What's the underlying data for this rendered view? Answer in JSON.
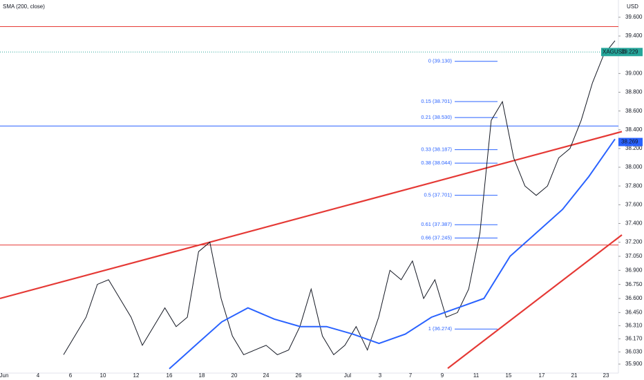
{
  "chart_data": {
    "type": "line",
    "indicator": "SMA (200, close)",
    "currency": "USD",
    "symbol": "XAGUSD",
    "ylim": [
      35.804,
      39.784
    ],
    "yticks": [
      {
        "value": 39.6,
        "label": "39.600"
      },
      {
        "value": 39.4,
        "label": "39.400"
      },
      {
        "value": 39.0,
        "label": "39.000"
      },
      {
        "value": 38.8,
        "label": "38.800"
      },
      {
        "value": 38.6,
        "label": "38.600"
      },
      {
        "value": 38.4,
        "label": "38.400"
      },
      {
        "value": 38.2,
        "label": "38.200"
      },
      {
        "value": 38.0,
        "label": "38.000"
      },
      {
        "value": 37.8,
        "label": "37.800"
      },
      {
        "value": 37.6,
        "label": "37.600"
      },
      {
        "value": 37.4,
        "label": "37.400"
      },
      {
        "value": 37.2,
        "label": "37.200"
      },
      {
        "value": 37.05,
        "label": "37.050"
      },
      {
        "value": 36.9,
        "label": "36.900"
      },
      {
        "value": 36.75,
        "label": "36.750"
      },
      {
        "value": 36.6,
        "label": "36.600"
      },
      {
        "value": 36.45,
        "label": "36.450"
      },
      {
        "value": 36.31,
        "label": "36.310"
      },
      {
        "value": 36.17,
        "label": "36.170"
      },
      {
        "value": 36.03,
        "label": "36.030"
      },
      {
        "value": 35.9,
        "label": "35.900"
      }
    ],
    "xticks": [
      "Jun",
      "4",
      "6",
      "10",
      "12",
      "16",
      "18",
      "20",
      "24",
      "26",
      "Jul",
      "3",
      "7",
      "9",
      "11",
      "15",
      "17",
      "21",
      "23"
    ],
    "series": [
      {
        "name": "XAGUSD",
        "color": "#131722",
        "values": [
          36.0,
          36.2,
          36.4,
          36.75,
          36.8,
          36.6,
          36.4,
          36.1,
          36.3,
          36.5,
          36.3,
          36.4,
          37.1,
          37.2,
          36.6,
          36.2,
          36.0,
          36.05,
          36.1,
          36.0,
          36.05,
          36.3,
          36.7,
          36.2,
          36.0,
          36.1,
          36.3,
          36.05,
          36.4,
          36.9,
          36.8,
          37.0,
          36.6,
          36.8,
          36.4,
          36.45,
          36.7,
          37.3,
          38.5,
          38.7,
          38.1,
          37.8,
          37.7,
          37.8,
          38.1,
          38.2,
          38.5,
          38.9,
          39.2,
          39.35
        ]
      },
      {
        "name": "SMA (200, close)",
        "color": "#2962ff",
        "values": [
          35.85,
          36.1,
          36.35,
          36.5,
          36.38,
          36.3,
          36.3,
          36.22,
          36.12,
          36.22,
          36.4,
          36.5,
          36.6,
          37.05,
          37.3,
          37.55,
          37.9,
          38.3
        ]
      }
    ],
    "levels": [
      {
        "value": 39.5,
        "color": "#e53935"
      },
      {
        "value": 38.44,
        "color": "#2962ff"
      },
      {
        "value": 37.17,
        "color": "#e53935"
      }
    ],
    "trendlines": [
      {
        "color": "#e53935",
        "values": [
          36.6,
          38.38
        ]
      },
      {
        "color": "#e53935",
        "values": [
          35.855,
          37.278
        ]
      }
    ],
    "fibonacci": [
      {
        "label": "0 (39.130)",
        "value": 39.13
      },
      {
        "label": "0.15 (38.701)",
        "value": 38.701
      },
      {
        "label": "0.21 (38.530)",
        "value": 38.53
      },
      {
        "label": "0.33 (38.187)",
        "value": 38.187
      },
      {
        "label": "0.38 (38.044)",
        "value": 38.044
      },
      {
        "label": "0.5 (37.701)",
        "value": 37.701
      },
      {
        "label": "0.61 (37.387)",
        "value": 37.387
      },
      {
        "label": "0.66 (37.245)",
        "value": 37.245
      },
      {
        "label": "1 (36.274)",
        "value": 36.274
      }
    ],
    "price_tags": [
      {
        "label": "39.229",
        "value": 39.229,
        "color": "#26a69a"
      },
      {
        "label": "38.269",
        "value": 38.269,
        "color": "#2962ff"
      }
    ]
  }
}
